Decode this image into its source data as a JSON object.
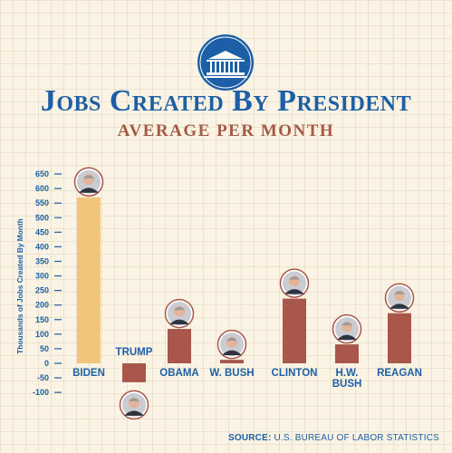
{
  "header": {
    "title": "Jobs Created By President",
    "subtitle": "AVERAGE PER MONTH"
  },
  "footer": {
    "source_label": "SOURCE:",
    "source_text": "U.S. BUREAU OF LABOR STATISTICS"
  },
  "colors": {
    "accent": "#1d5fa6",
    "bar_highlight": "#f0c77a",
    "bar": "#a8574a",
    "background": "#fbf3e3"
  },
  "icons": {
    "logo": "white-house-icon",
    "portraits": "president-portrait-icon"
  },
  "chart_data": {
    "type": "bar",
    "title": "Jobs Created By President",
    "subtitle": "AVERAGE PER MONTH",
    "ylabel": "Thousands of Jobs Created By Month",
    "xlabel": "",
    "ylim": [
      -100,
      650
    ],
    "yticks": [
      -100,
      -50,
      0,
      50,
      100,
      150,
      200,
      250,
      300,
      350,
      400,
      450,
      500,
      550,
      600,
      650
    ],
    "grid": true,
    "categories": [
      "BIDEN",
      "TRUMP",
      "OBAMA",
      "W. BUSH",
      "CLINTON",
      "H.W. BUSH",
      "REAGAN"
    ],
    "values": [
      570,
      -65,
      118,
      12,
      222,
      65,
      172
    ],
    "highlight": "BIDEN"
  }
}
